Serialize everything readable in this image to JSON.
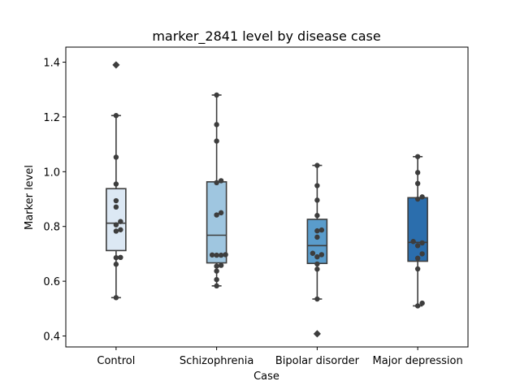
{
  "chart_data": {
    "type": "box",
    "title": "marker_2841 level by disease case",
    "xlabel": "Case",
    "ylabel": "Marker level",
    "ylim": [
      0.36,
      1.455
    ],
    "yticks": [
      "0.4",
      "0.6",
      "0.8",
      "1.0",
      "1.2",
      "1.4"
    ],
    "grid": false,
    "categories": [
      "Control",
      "Schizophrenia",
      "Bipolar disorder",
      "Major depression"
    ],
    "colors": [
      "#dce8f4",
      "#9fc6e0",
      "#5a9ccb",
      "#2b6ead"
    ],
    "boxes": [
      {
        "category": "Control",
        "q1": 0.712,
        "median": 0.812,
        "q3": 0.938,
        "whisker_low": 0.54,
        "whisker_high": 1.205,
        "outliers": [
          1.39
        ],
        "points": [
          0.54,
          0.662,
          0.686,
          0.687,
          0.783,
          0.788,
          0.806,
          0.818,
          0.871,
          0.894,
          0.955,
          1.053,
          1.205,
          1.39
        ]
      },
      {
        "category": "Schizophrenia",
        "q1": 0.667,
        "median": 0.768,
        "q3": 0.963,
        "whisker_low": 0.583,
        "whisker_high": 1.28,
        "outliers": [],
        "points": [
          0.583,
          0.606,
          0.637,
          0.655,
          0.658,
          0.695,
          0.695,
          0.696,
          0.697,
          0.842,
          0.85,
          0.96,
          0.967,
          1.112,
          1.172,
          1.28
        ]
      },
      {
        "category": "Bipolar disorder",
        "q1": 0.665,
        "median": 0.73,
        "q3": 0.826,
        "whisker_low": 0.535,
        "whisker_high": 1.023,
        "outliers": [
          0.408
        ],
        "points": [
          0.408,
          0.535,
          0.644,
          0.663,
          0.689,
          0.697,
          0.702,
          0.761,
          0.784,
          0.787,
          0.84,
          0.896,
          0.949,
          1.023
        ]
      },
      {
        "category": "Major depression",
        "q1": 0.673,
        "median": 0.742,
        "q3": 0.905,
        "whisker_low": 0.51,
        "whisker_high": 1.055,
        "outliers": [],
        "points": [
          0.51,
          0.52,
          0.645,
          0.684,
          0.7,
          0.73,
          0.74,
          0.745,
          0.9,
          0.908,
          0.957,
          0.997,
          1.055
        ]
      }
    ]
  }
}
